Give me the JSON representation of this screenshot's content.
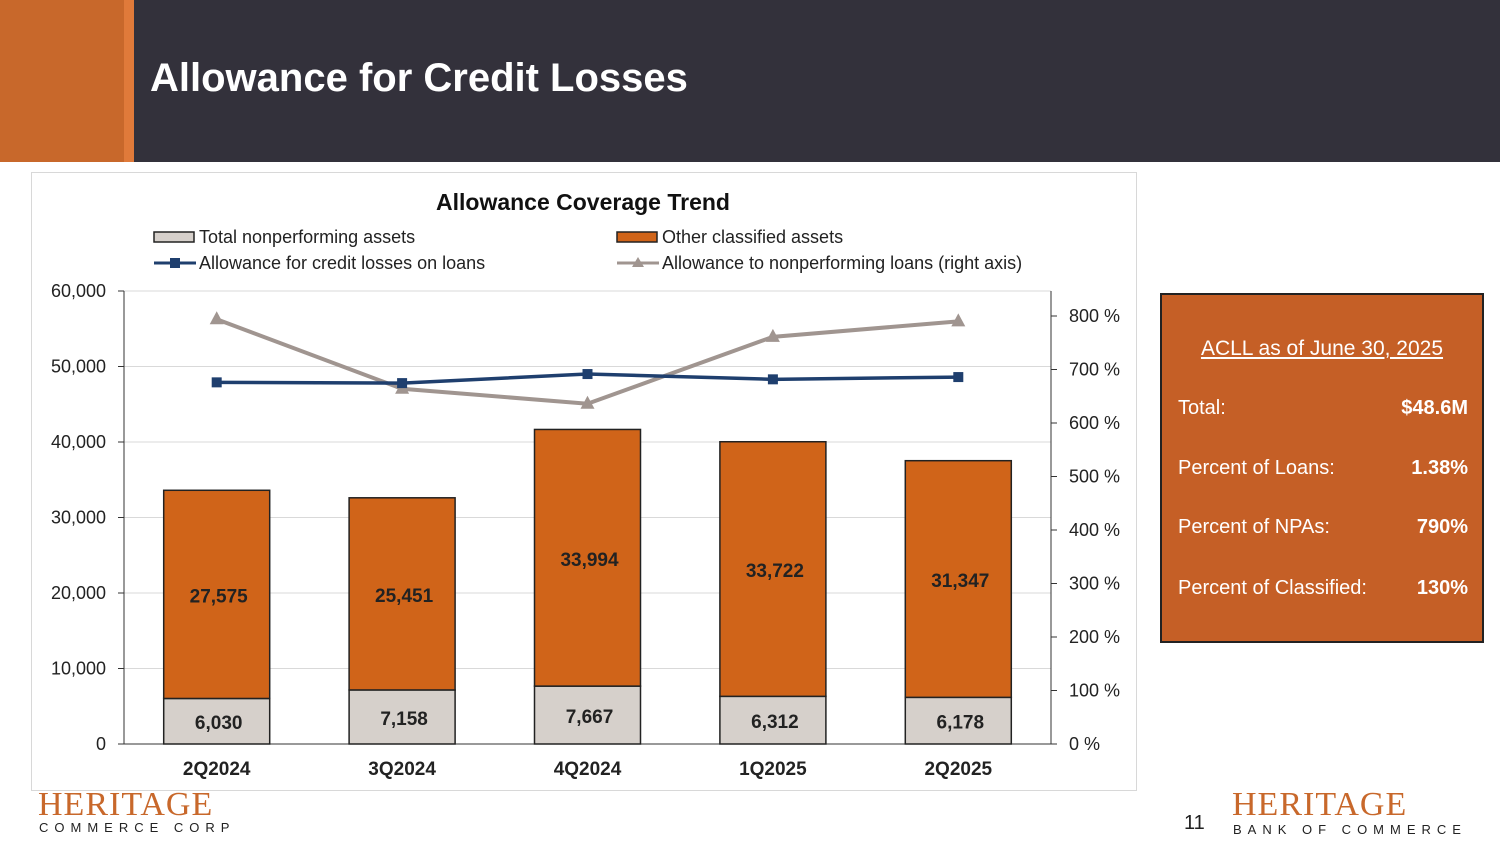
{
  "header": {
    "title": "Allowance for Credit Losses"
  },
  "chart_data": {
    "type": "bar+line",
    "title": "Allowance Coverage Trend",
    "categories": [
      "2Q2024",
      "3Q2024",
      "4Q2024",
      "1Q2025",
      "2Q2025"
    ],
    "series": [
      {
        "name": "Total nonperforming assets",
        "kind": "stacked-bar",
        "axis": "left",
        "color": "#d6d0cb",
        "values": [
          6030,
          7158,
          7667,
          6312,
          6178
        ],
        "labels": [
          "6,030",
          "7,158",
          "7,667",
          "6,312",
          "6,178"
        ]
      },
      {
        "name": "Other classified assets",
        "kind": "stacked-bar",
        "axis": "left",
        "color": "#d06419",
        "values": [
          27575,
          25451,
          33994,
          33722,
          31347
        ],
        "labels": [
          "27,575",
          "25,451",
          "33,994",
          "33,722",
          "31,347"
        ]
      },
      {
        "name": "Allowance for credit losses on loans",
        "kind": "line",
        "axis": "left",
        "color": "#1f3f6e",
        "values": [
          47900,
          47800,
          49000,
          48300,
          48600
        ]
      },
      {
        "name": "Allowance to nonperforming loans (right axis)",
        "kind": "line",
        "axis": "right",
        "color": "#a09590",
        "values": [
          794,
          664,
          636,
          761,
          790
        ]
      }
    ],
    "left_axis": {
      "ylim": [
        0,
        60000
      ],
      "ticks": [
        "0",
        "10,000",
        "20,000",
        "30,000",
        "40,000",
        "50,000",
        "60,000"
      ]
    },
    "right_axis": {
      "ylim": [
        0,
        850
      ],
      "ticks": [
        "0 %",
        "100 %",
        "200 %",
        "300 %",
        "400 %",
        "500 %",
        "600 %",
        "700 %",
        "800 %"
      ]
    },
    "legend": "top"
  },
  "panel": {
    "heading": "ACLL as of June 30, 2025",
    "rows": [
      {
        "label": "Total:",
        "value": "$48.6M"
      },
      {
        "label": "Percent of Loans:",
        "value": "1.38%"
      },
      {
        "label": "Percent of NPAs:",
        "value": "790%"
      },
      {
        "label": "Percent of Classified:",
        "value": "130%"
      }
    ]
  },
  "footer": {
    "left_logo": "HERITAGE",
    "left_sub": "COMMERCE CORP",
    "page": "11",
    "right_logo": "HERITAGE",
    "right_sub": "BANK OF COMMERCE"
  }
}
